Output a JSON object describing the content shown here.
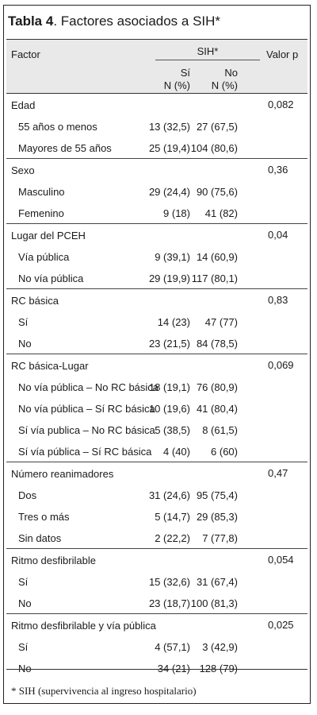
{
  "title": {
    "bold": "Tabla 4",
    "rest": ". Factores asociados a SIH*"
  },
  "header": {
    "factor": "Factor",
    "sih": "SIH*",
    "si": "Sí",
    "no": "No",
    "n_pct": "N (%)",
    "valor_p": "Valor p"
  },
  "groups": [
    {
      "label": "Edad",
      "p": "0,082",
      "rows": [
        {
          "label": "55 años o menos",
          "si": "13 (32,5)",
          "no": "27 (67,5)"
        },
        {
          "label": "Mayores de 55 años",
          "si": "25 (19,4)",
          "no": "104 (80,6)"
        }
      ]
    },
    {
      "label": "Sexo",
      "p": "0,36",
      "rows": [
        {
          "label": "Masculino",
          "si": "29 (24,4)",
          "no": "90 (75,6)"
        },
        {
          "label": "Femenino",
          "si": "9 (18)",
          "no": "41 (82)"
        }
      ]
    },
    {
      "label": "Lugar del PCEH",
      "p": "0,04",
      "rows": [
        {
          "label": "Vía pública",
          "si": "9 (39,1)",
          "no": "14 (60,9)"
        },
        {
          "label": "No vía pública",
          "si": "29 (19,9)",
          "no": "117 (80,1)"
        }
      ]
    },
    {
      "label": "RC básica",
      "p": "0,83",
      "rows": [
        {
          "label": "Sí",
          "si": "14 (23)",
          "no": "47 (77)"
        },
        {
          "label": "No",
          "si": "23 (21,5)",
          "no": "84 (78,5)"
        }
      ]
    },
    {
      "label": "RC básica-Lugar",
      "p": "0,069",
      "rows": [
        {
          "label": "No vía pública – No RC básica",
          "si": "18 (19,1)",
          "no": "76 (80,9)"
        },
        {
          "label": "No vía pública – Sí RC básica",
          "si": "10 (19,6)",
          "no": "41 (80,4)"
        },
        {
          "label": "Sí vía publica – No RC básica",
          "si": "5 (38,5)",
          "no": "8 (61,5)"
        },
        {
          "label": "Sí vía pública – Sí RC básica",
          "si": "4 (40)",
          "no": "6 (60)"
        }
      ]
    },
    {
      "label": "Número reanimadores",
      "p": "0,47",
      "rows": [
        {
          "label": "Dos",
          "si": "31 (24,6)",
          "no": "95 (75,4)"
        },
        {
          "label": "Tres o más",
          "si": "5 (14,7)",
          "no": "29 (85,3)"
        },
        {
          "label": "Sin datos",
          "si": "2 (22,2)",
          "no": "7 (77,8)"
        }
      ]
    },
    {
      "label": "Ritmo desfibrilable",
      "p": "0,054",
      "rows": [
        {
          "label": "Sí",
          "si": "15 (32,6)",
          "no": "31 (67,4)"
        },
        {
          "label": "No",
          "si": "23 (18,7)",
          "no": "100 (81,3)"
        }
      ]
    },
    {
      "label": "Ritmo desfibrilable y vía pública",
      "p": "0,025",
      "rows": [
        {
          "label": "Sí",
          "si": "4 (57,1)",
          "no": "3 (42,9)"
        },
        {
          "label": "No",
          "si": "34 (21)",
          "no": "128 (79)"
        }
      ]
    }
  ],
  "footnote": "* SIH (supervivencia al ingreso hospitalario)"
}
